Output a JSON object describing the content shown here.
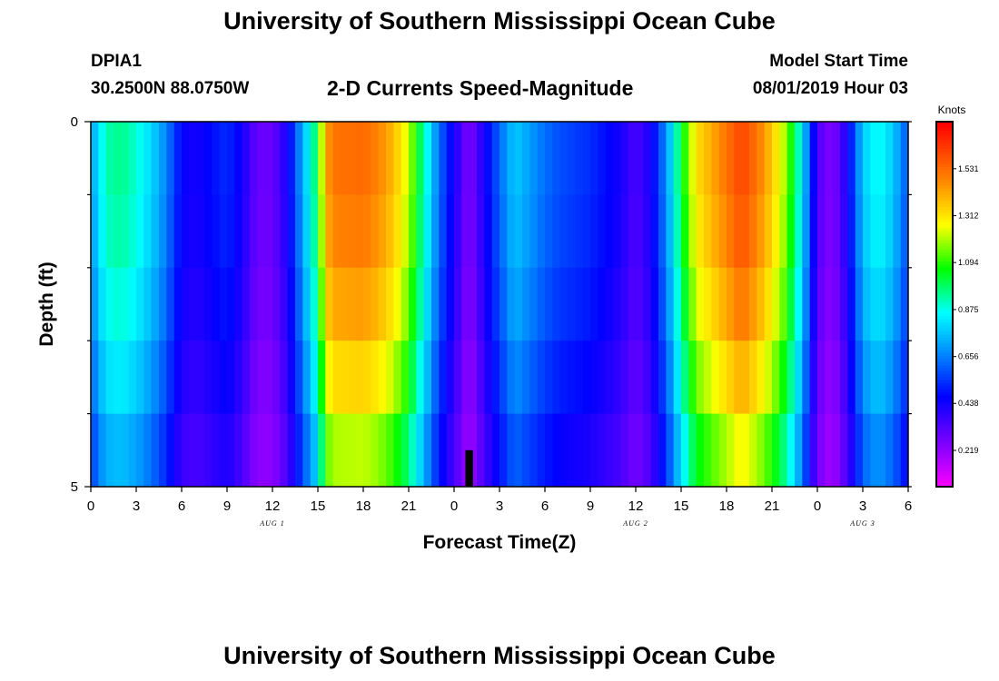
{
  "header": {
    "title": "University of Southern Mississippi Ocean Cube",
    "station": "DPIA1",
    "coordinates": "30.2500N 88.0750W",
    "subtitle": "2-D Currents Speed-Magnitude",
    "model_start_label": "Model Start Time",
    "model_start_value": "08/01/2019 Hour 03"
  },
  "footer": {
    "title": "University of Southern Mississippi Ocean Cube"
  },
  "chart_data": {
    "type": "heatmap",
    "title": "2-D Currents Speed-Magnitude",
    "xlabel": "Forecast Time(Z)",
    "ylabel": "Depth (ft)",
    "x_range_hours": [
      0,
      54
    ],
    "x_tick_labels": [
      "0",
      "3",
      "6",
      "9",
      "12",
      "15",
      "18",
      "21",
      "0",
      "3",
      "6",
      "9",
      "12",
      "15",
      "18",
      "21",
      "0",
      "3",
      "6"
    ],
    "date_labels": [
      {
        "text": "AUG 1",
        "hour": 12
      },
      {
        "text": "AUG 2",
        "hour": 36
      },
      {
        "text": "AUG 3",
        "hour": 51
      }
    ],
    "y_range_ft": [
      0,
      5
    ],
    "y_tick_labels": [
      "0",
      "5"
    ],
    "depth_levels_ft": [
      0,
      1,
      2,
      3,
      4,
      5
    ],
    "colorbar": {
      "unit": "Knots",
      "range": [
        0.05,
        1.75
      ],
      "tick_values": [
        0.219,
        0.438,
        0.656,
        0.875,
        1.094,
        1.312,
        1.531
      ]
    },
    "speed_profile_knots": [
      [
        0,
        0.72
      ],
      [
        1,
        0.95
      ],
      [
        2,
        0.98
      ],
      [
        3,
        0.92
      ],
      [
        4,
        0.82
      ],
      [
        5,
        0.68
      ],
      [
        6,
        0.48
      ],
      [
        7,
        0.45
      ],
      [
        8,
        0.5
      ],
      [
        9,
        0.55
      ],
      [
        10,
        0.45
      ],
      [
        11,
        0.3
      ],
      [
        12,
        0.3
      ],
      [
        13,
        0.45
      ],
      [
        14,
        0.75
      ],
      [
        15,
        1.05
      ],
      [
        15.5,
        1.45
      ],
      [
        16,
        1.55
      ],
      [
        18,
        1.57
      ],
      [
        19,
        1.52
      ],
      [
        20,
        1.42
      ],
      [
        21,
        1.25
      ],
      [
        22,
        0.95
      ],
      [
        23,
        0.65
      ],
      [
        24.5,
        0.35
      ],
      [
        25,
        0.25
      ],
      [
        26.5,
        0.55
      ],
      [
        28,
        0.8
      ],
      [
        30,
        0.65
      ],
      [
        31,
        0.6
      ],
      [
        33,
        0.55
      ],
      [
        35,
        0.45
      ],
      [
        36,
        0.35
      ],
      [
        37,
        0.45
      ],
      [
        38,
        0.7
      ],
      [
        39,
        1.05
      ],
      [
        40,
        1.35
      ],
      [
        42,
        1.55
      ],
      [
        43,
        1.65
      ],
      [
        44,
        1.55
      ],
      [
        45,
        1.4
      ],
      [
        46,
        1.2
      ],
      [
        47,
        0.85
      ],
      [
        48,
        0.35
      ],
      [
        49,
        0.25
      ],
      [
        50,
        0.45
      ],
      [
        51,
        0.8
      ],
      [
        52,
        0.9
      ],
      [
        53,
        0.8
      ],
      [
        54,
        0.6
      ]
    ],
    "depth_speed_factor": [
      1.0,
      0.98,
      0.96,
      0.92,
      0.86,
      0.78
    ],
    "missing_cell": {
      "hour_range": [
        24.75,
        25.25
      ],
      "depth_ft": [
        4.5,
        5
      ]
    }
  }
}
